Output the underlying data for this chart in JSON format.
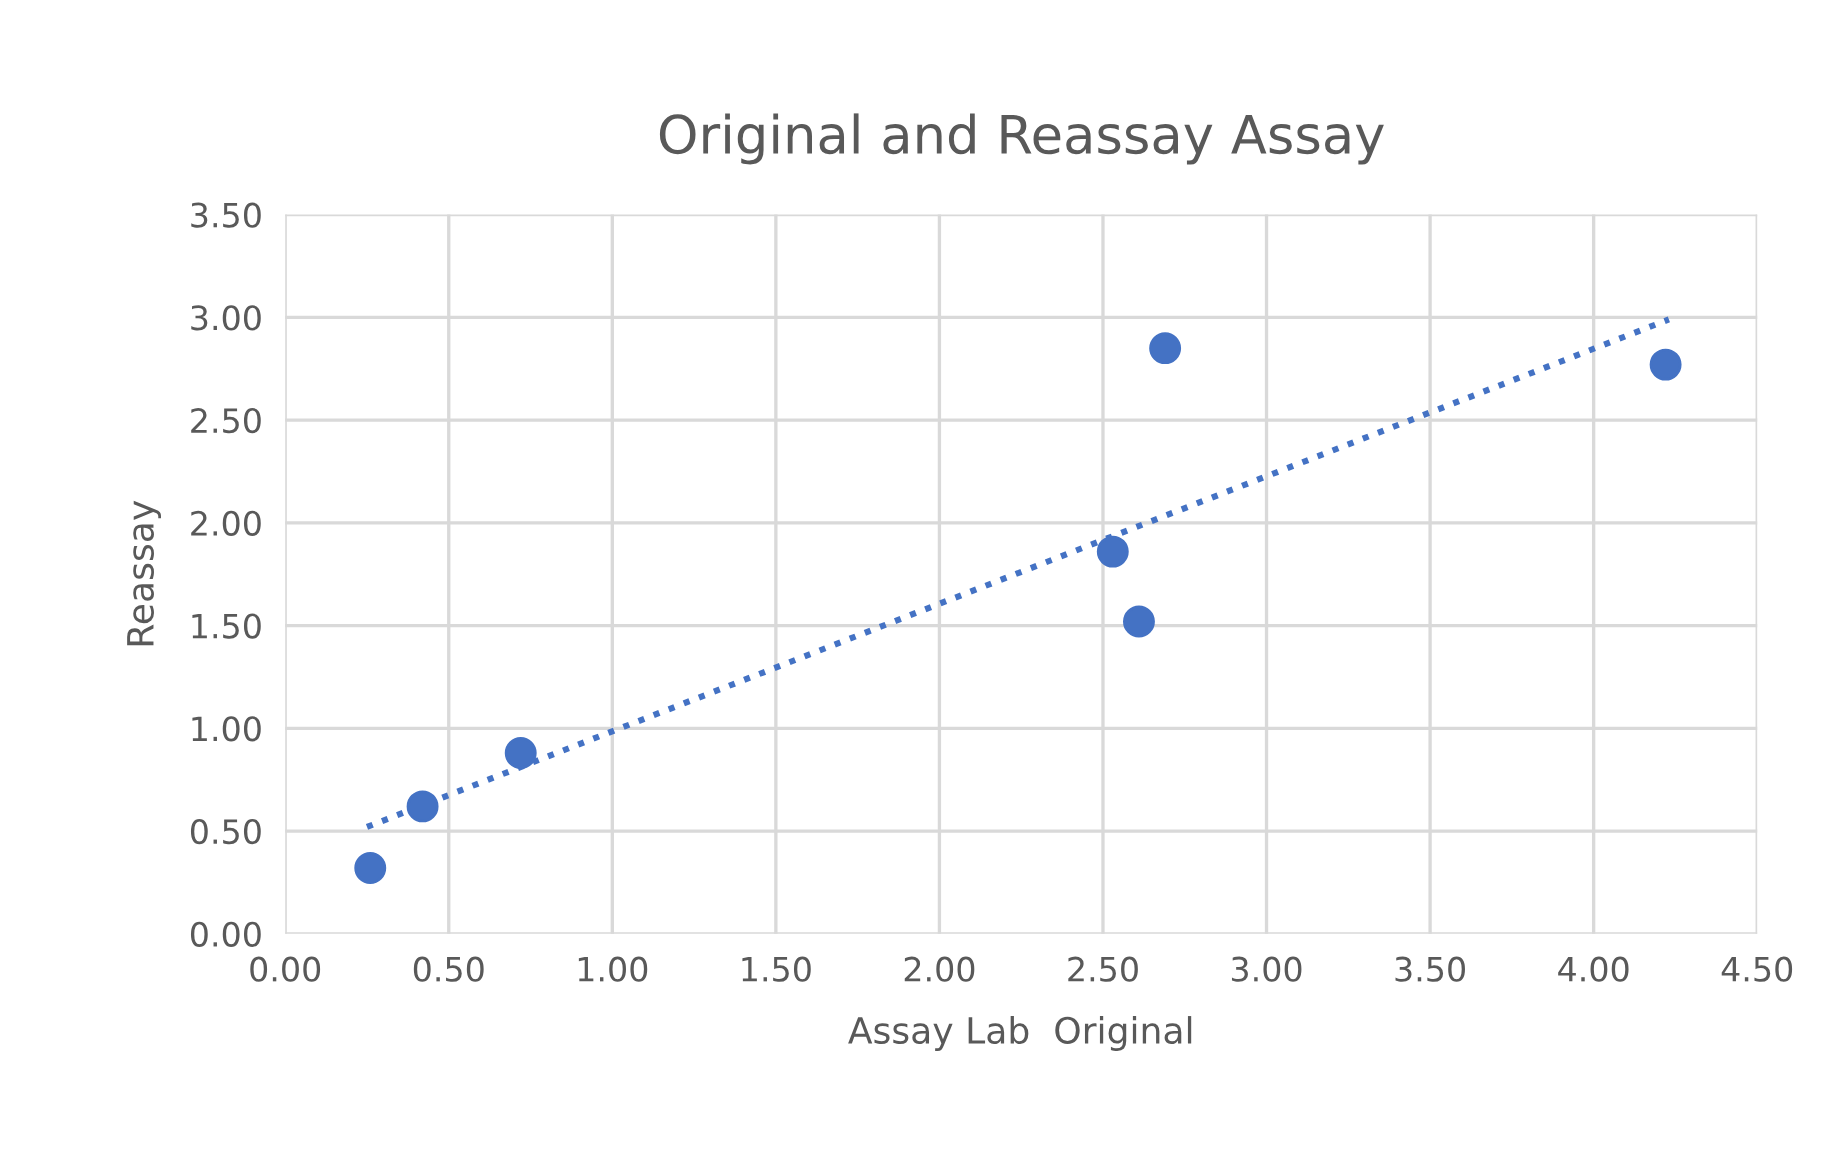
{
  "chart_data": {
    "type": "scatter",
    "title": "Original and Reassay Assay",
    "xlabel": "Assay Lab  Original",
    "ylabel": "Reassay",
    "series": [
      {
        "type": "scatter",
        "color": "#4472c4",
        "marker": "circle",
        "x": [
          0.26,
          0.42,
          0.72,
          2.53,
          2.61,
          2.69,
          4.22
        ],
        "values": [
          0.32,
          0.62,
          0.88,
          1.86,
          1.52,
          2.85,
          2.77
        ]
      },
      {
        "type": "line",
        "color": "#4472c4",
        "line_style": "dotted",
        "marker": "none",
        "x": [
          0.25,
          4.23
        ],
        "values": [
          0.52,
          2.99
        ]
      }
    ],
    "xlim": [
      0,
      4.5
    ],
    "ylim": [
      0,
      3.5
    ],
    "xticks": [
      {
        "value": 0,
        "label": "0.00"
      },
      {
        "value": 0.5,
        "label": "0.50"
      },
      {
        "value": 1,
        "label": "1.00"
      },
      {
        "value": 1.5,
        "label": "1.50"
      },
      {
        "value": 2,
        "label": "2.00"
      },
      {
        "value": 2.5,
        "label": "2.50"
      },
      {
        "value": 3,
        "label": "3.00"
      },
      {
        "value": 3.5,
        "label": "3.50"
      },
      {
        "value": 4,
        "label": "4.00"
      },
      {
        "value": 4.5,
        "label": "4.50"
      }
    ],
    "yticks": [
      {
        "value": 0,
        "label": "0.00"
      },
      {
        "value": 0.5,
        "label": "0.50"
      },
      {
        "value": 1,
        "label": "1.00"
      },
      {
        "value": 1.5,
        "label": "1.50"
      },
      {
        "value": 2,
        "label": "2.00"
      },
      {
        "value": 2.5,
        "label": "2.50"
      },
      {
        "value": 3,
        "label": "3.00"
      },
      {
        "value": 3.5,
        "label": "3.50"
      }
    ],
    "grid": true,
    "legend": false
  }
}
